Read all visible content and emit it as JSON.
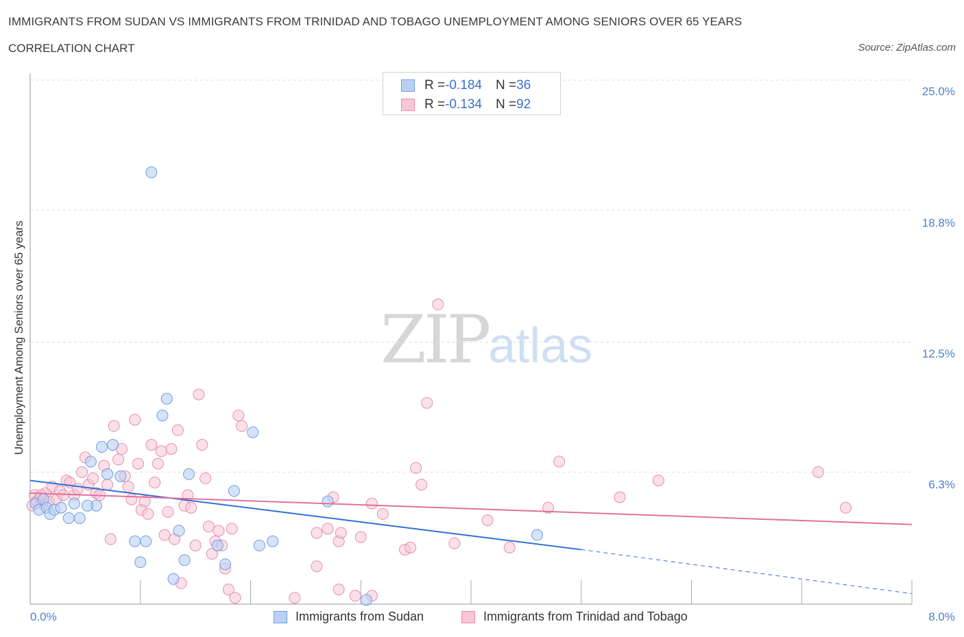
{
  "chart_data": {
    "type": "scatter",
    "title": "IMMIGRANTS FROM SUDAN VS IMMIGRANTS FROM TRINIDAD AND TOBAGO UNEMPLOYMENT AMONG SENIORS OVER 65 YEARS",
    "subtitle": "CORRELATION CHART",
    "source": "Source: ZipAtlas.com",
    "ylabel": "Unemployment Among Seniors over 65 years",
    "xlim": [
      0,
      8
    ],
    "ylim": [
      0,
      25
    ],
    "x_tick_labels": [
      "0.0%",
      "8.0%"
    ],
    "y_ticks": [
      6.3,
      12.5,
      18.8,
      25.0
    ],
    "y_tick_labels": [
      "6.3%",
      "12.5%",
      "18.8%",
      "25.0%"
    ],
    "watermark": {
      "zip": "ZIP",
      "atlas": "atlas"
    },
    "colors": {
      "sudan": "#6e9de0",
      "sudan_fill": "#b9d1f5",
      "trinidad": "#e58cad",
      "trinidad_fill": "#f8c6d6",
      "sudan_line": "#2f6fd6",
      "trinidad_line": "#e0709a",
      "grid": "#dedede"
    },
    "legend": [
      {
        "r_label": "R = ",
        "r": "-0.184",
        "n_label": "N = ",
        "n": "36"
      },
      {
        "r_label": "R = ",
        "r": "-0.134",
        "n_label": "N = ",
        "n": "92"
      }
    ],
    "series": [
      {
        "name": "Immigrants from Sudan",
        "trend": {
          "x0": 0.0,
          "y0": 5.9,
          "x1": 5.0,
          "y1": 2.6,
          "dash_to_x": 8.0,
          "dash_to_y": 0.5
        },
        "points": [
          [
            0.05,
            4.8
          ],
          [
            0.08,
            4.5
          ],
          [
            0.12,
            5.0
          ],
          [
            0.15,
            4.6
          ],
          [
            0.18,
            4.3
          ],
          [
            0.22,
            4.5
          ],
          [
            0.28,
            4.6
          ],
          [
            0.35,
            4.1
          ],
          [
            0.4,
            4.8
          ],
          [
            0.45,
            4.1
          ],
          [
            0.55,
            6.8
          ],
          [
            0.6,
            4.7
          ],
          [
            0.65,
            7.5
          ],
          [
            0.7,
            6.2
          ],
          [
            0.75,
            7.6
          ],
          [
            0.82,
            6.1
          ],
          [
            0.95,
            3.0
          ],
          [
            1.0,
            2.0
          ],
          [
            1.05,
            3.0
          ],
          [
            1.1,
            20.6
          ],
          [
            1.2,
            9.0
          ],
          [
            1.24,
            9.8
          ],
          [
            1.3,
            1.2
          ],
          [
            1.35,
            3.5
          ],
          [
            1.4,
            2.1
          ],
          [
            1.44,
            6.2
          ],
          [
            1.7,
            2.8
          ],
          [
            1.77,
            1.9
          ],
          [
            1.85,
            5.4
          ],
          [
            2.02,
            8.2
          ],
          [
            2.08,
            2.8
          ],
          [
            2.2,
            3.0
          ],
          [
            2.7,
            4.9
          ],
          [
            3.05,
            0.2
          ],
          [
            4.6,
            3.3
          ],
          [
            0.52,
            4.7
          ]
        ]
      },
      {
        "name": "Immigrants from Trinidad and Tobago",
        "trend": {
          "x0": 0.0,
          "y0": 5.3,
          "x1": 8.0,
          "y1": 3.8
        },
        "points": [
          [
            0.02,
            4.7
          ],
          [
            0.04,
            5.2
          ],
          [
            0.06,
            4.9
          ],
          [
            0.09,
            5.1
          ],
          [
            0.11,
            4.8
          ],
          [
            0.14,
            5.3
          ],
          [
            0.17,
            4.9
          ],
          [
            0.2,
            5.6
          ],
          [
            0.24,
            5.0
          ],
          [
            0.27,
            5.4
          ],
          [
            0.3,
            5.2
          ],
          [
            0.33,
            5.9
          ],
          [
            0.36,
            5.8
          ],
          [
            0.4,
            5.2
          ],
          [
            0.43,
            5.5
          ],
          [
            0.47,
            6.3
          ],
          [
            0.5,
            7.0
          ],
          [
            0.53,
            5.7
          ],
          [
            0.57,
            6.0
          ],
          [
            0.6,
            5.3
          ],
          [
            0.63,
            5.2
          ],
          [
            0.67,
            6.6
          ],
          [
            0.7,
            5.7
          ],
          [
            0.73,
            3.1
          ],
          [
            0.76,
            8.5
          ],
          [
            0.8,
            6.9
          ],
          [
            0.83,
            7.4
          ],
          [
            0.86,
            6.1
          ],
          [
            0.89,
            5.6
          ],
          [
            0.92,
            5.0
          ],
          [
            0.95,
            8.8
          ],
          [
            0.98,
            6.7
          ],
          [
            1.01,
            4.5
          ],
          [
            1.04,
            4.9
          ],
          [
            1.07,
            4.3
          ],
          [
            1.1,
            7.6
          ],
          [
            1.13,
            5.8
          ],
          [
            1.16,
            6.7
          ],
          [
            1.19,
            7.3
          ],
          [
            1.22,
            3.3
          ],
          [
            1.25,
            4.4
          ],
          [
            1.28,
            7.4
          ],
          [
            1.31,
            3.1
          ],
          [
            1.34,
            8.3
          ],
          [
            1.37,
            1.0
          ],
          [
            1.4,
            4.7
          ],
          [
            1.43,
            5.2
          ],
          [
            1.46,
            4.6
          ],
          [
            1.5,
            2.8
          ],
          [
            1.53,
            10.0
          ],
          [
            1.56,
            7.6
          ],
          [
            1.59,
            6.0
          ],
          [
            1.62,
            3.7
          ],
          [
            1.65,
            2.4
          ],
          [
            1.68,
            3.0
          ],
          [
            1.71,
            3.5
          ],
          [
            1.74,
            2.8
          ],
          [
            1.77,
            1.7
          ],
          [
            1.8,
            0.7
          ],
          [
            1.83,
            3.6
          ],
          [
            1.86,
            0.3
          ],
          [
            1.89,
            9.0
          ],
          [
            1.92,
            8.5
          ],
          [
            2.4,
            0.3
          ],
          [
            2.6,
            1.8
          ],
          [
            2.6,
            3.4
          ],
          [
            2.7,
            3.6
          ],
          [
            2.75,
            5.1
          ],
          [
            2.8,
            3.0
          ],
          [
            2.82,
            3.4
          ],
          [
            2.8,
            0.7
          ],
          [
            3.0,
            3.2
          ],
          [
            3.1,
            4.8
          ],
          [
            3.2,
            4.3
          ],
          [
            3.4,
            2.6
          ],
          [
            3.45,
            2.7
          ],
          [
            3.5,
            6.5
          ],
          [
            3.55,
            5.7
          ],
          [
            3.6,
            9.6
          ],
          [
            3.7,
            14.3
          ],
          [
            3.85,
            2.9
          ],
          [
            4.15,
            4.0
          ],
          [
            4.35,
            2.7
          ],
          [
            4.7,
            4.6
          ],
          [
            4.8,
            6.8
          ],
          [
            5.35,
            5.1
          ],
          [
            5.7,
            5.9
          ],
          [
            7.15,
            6.3
          ],
          [
            7.4,
            4.6
          ],
          [
            3.1,
            0.4
          ],
          [
            2.95,
            0.4
          ],
          [
            0.1,
            5.2
          ]
        ]
      }
    ]
  }
}
